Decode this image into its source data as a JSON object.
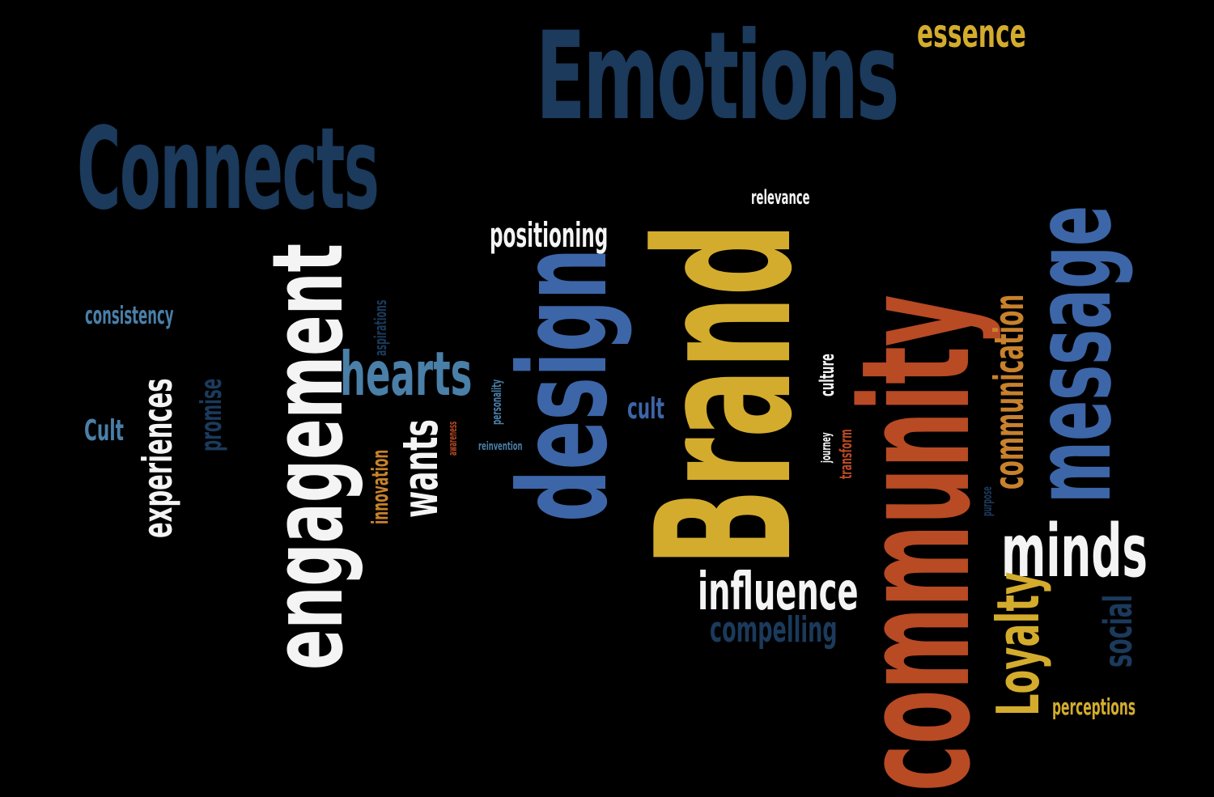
{
  "word_cloud": {
    "background": "#000000",
    "colors": {
      "navy": "#1b3a5c",
      "blue": "#3d66a8",
      "gold": "#d4ac2d",
      "rust": "#b84a24",
      "white": "#f4f4f4",
      "steel": "#4a7fa8",
      "orange": "#c8822c"
    },
    "words": [
      {
        "id": "emotions",
        "text": "Emotions",
        "color": "navy",
        "orientation": "horizontal"
      },
      {
        "id": "connects",
        "text": "Connects",
        "color": "navy",
        "orientation": "horizontal"
      },
      {
        "id": "essence",
        "text": "essence",
        "color": "gold",
        "orientation": "horizontal"
      },
      {
        "id": "relevance",
        "text": "relevance",
        "color": "white",
        "orientation": "horizontal"
      },
      {
        "id": "positioning",
        "text": "positioning",
        "color": "white",
        "orientation": "horizontal"
      },
      {
        "id": "consistency",
        "text": "consistency",
        "color": "steel",
        "orientation": "horizontal"
      },
      {
        "id": "hearts",
        "text": "hearts",
        "color": "steel",
        "orientation": "horizontal"
      },
      {
        "id": "cult-upper",
        "text": "Cult",
        "color": "steel",
        "orientation": "horizontal"
      },
      {
        "id": "cult-lower",
        "text": "cult",
        "color": "blue",
        "orientation": "horizontal"
      },
      {
        "id": "reinvention",
        "text": "reinvention",
        "color": "steel",
        "orientation": "horizontal"
      },
      {
        "id": "influence",
        "text": "influence",
        "color": "white",
        "orientation": "horizontal"
      },
      {
        "id": "compelling",
        "text": "compelling",
        "color": "navy",
        "orientation": "horizontal"
      },
      {
        "id": "minds",
        "text": "minds",
        "color": "white",
        "orientation": "horizontal"
      },
      {
        "id": "perceptions",
        "text": "perceptions",
        "color": "gold",
        "orientation": "horizontal"
      },
      {
        "id": "engagement",
        "text": "engagement",
        "color": "white",
        "orientation": "vertical"
      },
      {
        "id": "experiences",
        "text": "experiences",
        "color": "white",
        "orientation": "vertical"
      },
      {
        "id": "promise",
        "text": "promise",
        "color": "navy",
        "orientation": "vertical"
      },
      {
        "id": "aspirations",
        "text": "aspirations",
        "color": "navy",
        "orientation": "vertical"
      },
      {
        "id": "wants",
        "text": "wants",
        "color": "white",
        "orientation": "vertical"
      },
      {
        "id": "innovation",
        "text": "innovation",
        "color": "orange",
        "orientation": "vertical"
      },
      {
        "id": "awareness",
        "text": "awareness",
        "color": "rust",
        "orientation": "vertical"
      },
      {
        "id": "personality",
        "text": "personality",
        "color": "steel",
        "orientation": "vertical"
      },
      {
        "id": "design",
        "text": "design",
        "color": "blue",
        "orientation": "vertical"
      },
      {
        "id": "brand",
        "text": "Brand",
        "color": "gold",
        "orientation": "vertical"
      },
      {
        "id": "community",
        "text": "community",
        "color": "rust",
        "orientation": "vertical"
      },
      {
        "id": "culture",
        "text": "culture",
        "color": "white",
        "orientation": "vertical"
      },
      {
        "id": "journey",
        "text": "journey",
        "color": "white",
        "orientation": "vertical"
      },
      {
        "id": "transform",
        "text": "transform",
        "color": "rust",
        "orientation": "vertical"
      },
      {
        "id": "communication",
        "text": "communication",
        "color": "orange",
        "orientation": "vertical"
      },
      {
        "id": "message",
        "text": "message",
        "color": "blue",
        "orientation": "vertical"
      },
      {
        "id": "purpose",
        "text": "purpose",
        "color": "navy",
        "orientation": "vertical"
      },
      {
        "id": "loyalty",
        "text": "Loyalty",
        "color": "gold",
        "orientation": "vertical"
      },
      {
        "id": "social",
        "text": "social",
        "color": "navy",
        "orientation": "vertical"
      }
    ]
  }
}
